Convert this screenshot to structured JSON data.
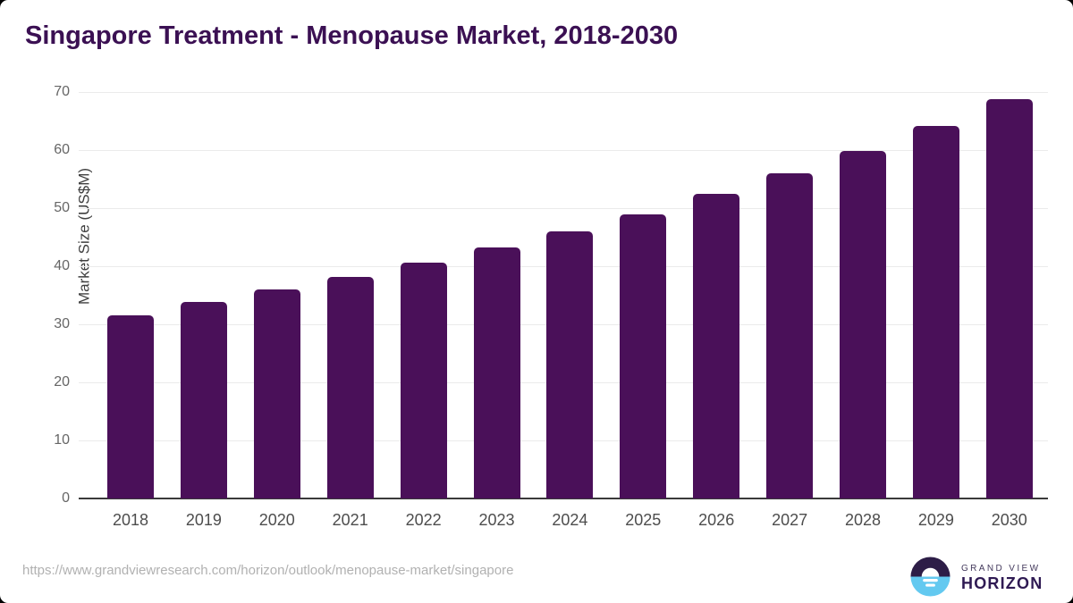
{
  "header": {
    "title": "Singapore Treatment - Menopause Market, 2018-2030"
  },
  "chart_data": {
    "type": "bar",
    "title": "Singapore Treatment - Menopause Market, 2018-2030",
    "categories": [
      "2018",
      "2019",
      "2020",
      "2021",
      "2022",
      "2023",
      "2024",
      "2025",
      "2026",
      "2027",
      "2028",
      "2029",
      "2030"
    ],
    "values": [
      31.5,
      33.9,
      36.0,
      38.2,
      40.6,
      43.2,
      46.0,
      49.0,
      52.4,
      56.0,
      59.9,
      64.1,
      68.7
    ],
    "xlabel": "",
    "ylabel": "Market Size (US$M)",
    "ylim": [
      0,
      70
    ],
    "yticks": [
      0,
      10,
      20,
      30,
      40,
      50,
      60,
      70
    ],
    "grid": "horizontal",
    "legend": "none",
    "bar_color": "#4a1059"
  },
  "footer": {
    "source_url": "https://www.grandviewresearch.com/horizon/outlook/menopause-market/singapore",
    "logo": {
      "line1": "GRAND VIEW",
      "line2": "HORIZON"
    }
  },
  "colors": {
    "title_text": "#3b1053",
    "bar": "#4a1059",
    "logo_dark": "#2d1d47",
    "logo_blue": "#63c9f0",
    "gridline": "#ebebeb",
    "axis_line": "#3a3a3a"
  }
}
